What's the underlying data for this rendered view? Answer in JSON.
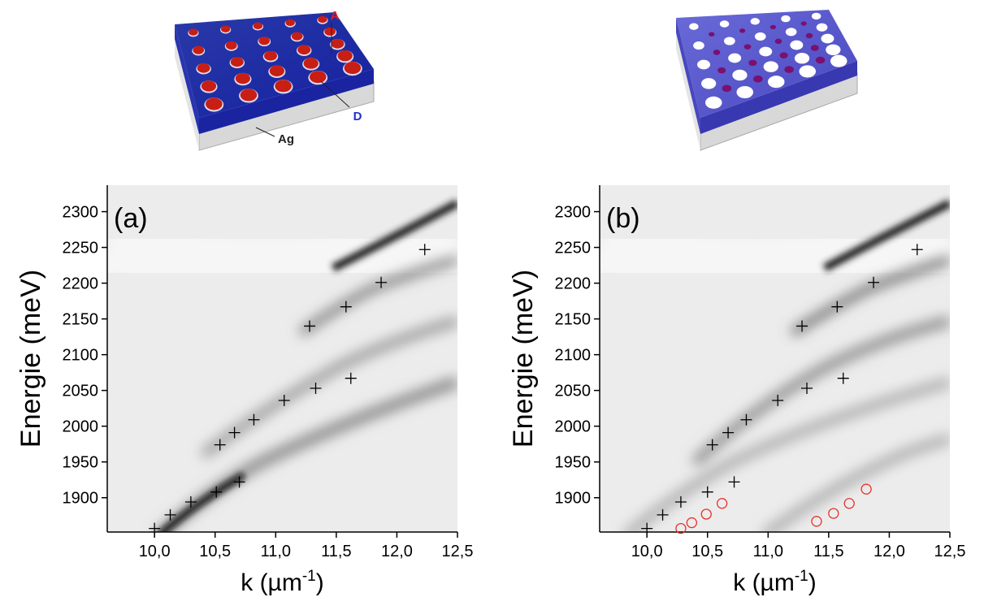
{
  "chart_data": [
    {
      "type": "scatter",
      "panel_label": "(a)",
      "xlabel": [
        "k (µm",
        "-1",
        ")"
      ],
      "ylabel": "Energie (meV)",
      "xlim": [
        9.61,
        12.5
      ],
      "ylim": [
        1852,
        2337
      ],
      "xticks": [
        {
          "value": 10,
          "label": "10,0"
        },
        {
          "value": 10.5,
          "label": "10,5"
        },
        {
          "value": 11,
          "label": "11,0"
        },
        {
          "value": 11.5,
          "label": "11,5"
        },
        {
          "value": 12,
          "label": "12,0"
        },
        {
          "value": 12.5,
          "label": "12,5"
        }
      ],
      "yticks": [
        1900,
        1950,
        2000,
        2050,
        2100,
        2150,
        2200,
        2250,
        2300
      ],
      "series": [
        {
          "color": "#000000",
          "marker": "plus",
          "x": [
            10.0,
            10.13,
            10.3,
            10.51,
            10.7,
            10.54,
            10.66,
            10.82,
            11.07,
            11.33,
            11.62,
            11.28,
            11.58,
            11.87,
            12.23
          ],
          "values": [
            1857,
            1876,
            1894,
            1908,
            1922,
            1974,
            1991,
            2009,
            2036,
            2053,
            2067,
            2140,
            2167,
            2201,
            2247
          ]
        }
      ]
    },
    {
      "type": "scatter",
      "panel_label": "(b)",
      "xlabel": [
        "k (µm",
        "-1",
        ")"
      ],
      "ylabel": "Energie (meV)",
      "xlim": [
        9.61,
        12.5
      ],
      "ylim": [
        1852,
        2337
      ],
      "xticks": [
        {
          "value": 10,
          "label": "10,0"
        },
        {
          "value": 10.5,
          "label": "10,5"
        },
        {
          "value": 11,
          "label": "11,0"
        },
        {
          "value": 11.5,
          "label": "11,5"
        },
        {
          "value": 12,
          "label": "12,0"
        },
        {
          "value": 12.5,
          "label": "12,5"
        }
      ],
      "yticks": [
        1900,
        1950,
        2000,
        2050,
        2100,
        2150,
        2200,
        2250,
        2300
      ],
      "series": [
        {
          "color": "#000000",
          "marker": "plus",
          "x": [
            10.0,
            10.13,
            10.28,
            10.5,
            10.72,
            10.54,
            10.67,
            10.82,
            11.08,
            11.32,
            11.62,
            11.28,
            11.57,
            11.87,
            12.23
          ],
          "values": [
            1857,
            1876,
            1894,
            1908,
            1922,
            1974,
            1991,
            2009,
            2036,
            2053,
            2067,
            2140,
            2167,
            2201,
            2247
          ]
        },
        {
          "color": "#e8302a",
          "marker": "circle",
          "x": [
            10.28,
            10.37,
            10.49,
            10.62,
            11.4,
            11.54,
            11.67,
            11.81
          ],
          "values": [
            1857,
            1865,
            1877,
            1892,
            1867,
            1878,
            1892,
            1912
          ]
        }
      ]
    }
  ],
  "illustration": {
    "labels": [
      "A",
      "D",
      "Ag"
    ]
  }
}
